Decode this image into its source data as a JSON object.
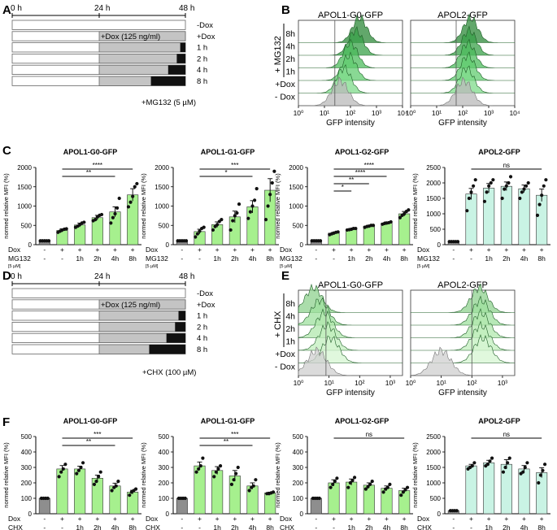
{
  "figure": {
    "panel_letters": [
      "A",
      "B",
      "C",
      "D",
      "E",
      "F"
    ],
    "colors": {
      "bar_green": "#a6f08e",
      "bar_mint": "#c9f3e4",
      "bar_grey": "#8e8e8e",
      "timeline_grey": "#c4c4c4",
      "treat_black": "#111111",
      "hist_dark": "#2e7d32",
      "hist_grey": "#c8c8c8",
      "dot": "#111111"
    },
    "timeline_A": {
      "time_labels": [
        "0 h",
        "24 h",
        "48 h"
      ],
      "rows": [
        {
          "label": "-Dox",
          "dox": false,
          "frac": 0
        },
        {
          "label": "+Dox",
          "dox": true,
          "frac": 0
        },
        {
          "label": "1 h",
          "dox": true,
          "frac": 0.06
        },
        {
          "label": "2 h",
          "dox": true,
          "frac": 0.1
        },
        {
          "label": "4 h",
          "dox": true,
          "frac": 0.2
        },
        {
          "label": "8 h",
          "dox": true,
          "frac": 0.4
        }
      ],
      "dox_text": "+Dox (125 ng/ml)",
      "treat_text": "+MG132 (5 µM)"
    },
    "timeline_D": {
      "time_labels": [
        "0 h",
        "24 h",
        "48 h"
      ],
      "rows": [
        {
          "label": "-Dox",
          "dox": false,
          "frac": 0
        },
        {
          "label": "+Dox",
          "dox": true,
          "frac": 0
        },
        {
          "label": "1 h",
          "dox": true,
          "frac": 0.08
        },
        {
          "label": "2 h",
          "dox": true,
          "frac": 0.12
        },
        {
          "label": "4 h",
          "dox": true,
          "frac": 0.22
        },
        {
          "label": "8 h",
          "dox": true,
          "frac": 0.42
        }
      ],
      "dox_text": "+Dox (125 ng/ml)",
      "treat_text": "+CHX (100 µM)"
    },
    "hist_B": {
      "titles": [
        "APOL1-G0-GFP",
        "APOL2-GFP"
      ],
      "row_labels": [
        "8h",
        "4h",
        "2h",
        "1h",
        "+Dox",
        "- Dox"
      ],
      "treat_label": "+ MG132",
      "xlabel": "GFP intensity",
      "ticks_left": [
        "10⁰",
        "10¹",
        "10²",
        "10³",
        "10⁴"
      ],
      "ticks_right": [
        "10⁰",
        "10¹",
        "10²",
        "10³",
        "10⁴"
      ],
      "peaks_left": [
        2.35,
        2.2,
        2.0,
        1.95,
        1.75,
        1.6
      ],
      "peaks_right": [
        2.3,
        2.25,
        2.2,
        2.2,
        2.15,
        2.05
      ],
      "line_left": 1.4,
      "line_right": 1.75
    },
    "hist_E": {
      "titles": [
        "APOL1-G0-GFP",
        "APOL2-GFP"
      ],
      "row_labels": [
        "8h",
        "4h",
        "2h",
        "1h",
        "+Dox",
        "- Dox"
      ],
      "treat_label": "+ CHX",
      "xlabel": "GFP intensity",
      "ticks_left": [
        "10⁰",
        "10¹",
        "10²",
        "10³"
      ],
      "ticks_right": [
        "10⁰",
        "10¹",
        "10²",
        "10³"
      ],
      "peaks_left": [
        0.5,
        0.7,
        0.85,
        0.95,
        1.05,
        0.6
      ],
      "peaks_right": [
        2.25,
        2.3,
        2.3,
        2.3,
        2.35,
        1.0
      ],
      "line_left": 0.9,
      "line_right": 2.0
    },
    "chart_data": [
      {
        "id": "C1",
        "type": "bar",
        "title": "APOL1-G0-GFP",
        "ylabel": "normed relative MFI (%)",
        "categories": [
          "-",
          "-",
          "1h",
          "2h",
          "4h",
          "8h"
        ],
        "values": [
          100,
          370,
          510,
          700,
          850,
          1290
        ],
        "errors": [
          5,
          40,
          50,
          60,
          130,
          160
        ],
        "ylim": [
          0,
          2000
        ],
        "yticks": [
          0,
          500,
          1000,
          1500,
          2000
        ],
        "dots": [
          [
            100,
            100,
            100,
            100,
            100
          ],
          [
            320,
            350,
            380,
            400,
            410
          ],
          [
            450,
            480,
            520,
            560,
            580
          ],
          [
            620,
            650,
            720,
            760,
            780
          ],
          [
            560,
            700,
            800,
            950,
            1200
          ],
          [
            980,
            1100,
            1250,
            1500,
            1580
          ]
        ],
        "sig": [
          {
            "from": 1,
            "to": 5,
            "label": "****"
          },
          {
            "from": 1,
            "to": 4,
            "label": "**"
          }
        ],
        "row_labels": [
          "Dox",
          "MG132"
        ],
        "row_note": "[5 µM]",
        "dox_row": [
          "-",
          "+",
          "+",
          "+",
          "+",
          "+"
        ],
        "treat_row": [
          "-",
          "-",
          "1h",
          "2h",
          "4h",
          "8h"
        ]
      },
      {
        "id": "C2",
        "type": "bar",
        "title": "APOL1-G1-GFP",
        "ylabel": "normed relative MFI (%)",
        "categories": [
          "-",
          "-",
          "1h",
          "2h",
          "4h",
          "8h"
        ],
        "values": [
          100,
          340,
          520,
          720,
          980,
          1410
        ],
        "errors": [
          5,
          60,
          70,
          150,
          160,
          300
        ],
        "ylim": [
          0,
          2000
        ],
        "yticks": [
          0,
          500,
          1000,
          1500,
          2000
        ],
        "dots": [
          [
            100,
            100,
            100,
            100,
            100
          ],
          [
            200,
            280,
            350,
            420,
            450
          ],
          [
            380,
            470,
            520,
            600,
            650
          ],
          [
            380,
            620,
            750,
            820,
            1050
          ],
          [
            680,
            850,
            1000,
            1150,
            1450
          ],
          [
            650,
            1000,
            1300,
            1600,
            1900
          ]
        ],
        "sig": [
          {
            "from": 1,
            "to": 5,
            "label": "***"
          },
          {
            "from": 1,
            "to": 4,
            "label": "*"
          }
        ],
        "row_labels": [
          "Dox",
          "MG132"
        ],
        "row_note": "[5 µM]",
        "dox_row": [
          "-",
          "+",
          "+",
          "+",
          "+",
          "+"
        ],
        "treat_row": [
          "-",
          "-",
          "1h",
          "2h",
          "4h",
          "8h"
        ]
      },
      {
        "id": "C3",
        "type": "bar",
        "title": "APOL1-G2-GFP",
        "ylabel": "normed relative MFI (%)",
        "categories": [
          "-",
          "-",
          "1h",
          "2h",
          "4h",
          "8h"
        ],
        "values": [
          100,
          300,
          400,
          480,
          560,
          800
        ],
        "errors": [
          5,
          20,
          20,
          25,
          30,
          60
        ],
        "ylim": [
          0,
          2000
        ],
        "yticks": [
          0,
          500,
          1000,
          1500,
          2000
        ],
        "dots": [
          [
            100,
            100,
            100,
            100,
            100
          ],
          [
            260,
            280,
            300,
            320,
            330
          ],
          [
            380,
            390,
            400,
            420,
            420
          ],
          [
            450,
            470,
            480,
            500,
            500
          ],
          [
            530,
            550,
            560,
            570,
            590
          ],
          [
            700,
            760,
            800,
            860,
            900
          ]
        ],
        "sig": [
          {
            "from": 1,
            "to": 5,
            "label": "****"
          },
          {
            "from": 1,
            "to": 4,
            "label": "****"
          },
          {
            "from": 1,
            "to": 3,
            "label": "**"
          },
          {
            "from": 1,
            "to": 2,
            "label": "*"
          }
        ],
        "row_labels": [
          "Dox",
          "MG132"
        ],
        "row_note": "[5 µM]",
        "dox_row": [
          "-",
          "+",
          "+",
          "+",
          "+",
          "+"
        ],
        "treat_row": [
          "-",
          "-",
          "1h",
          "2h",
          "4h",
          "8h"
        ]
      },
      {
        "id": "C4",
        "type": "bar",
        "title": "APOL2-GFP",
        "ylabel": "normed relative MFI (%)",
        "mint": true,
        "categories": [
          "-",
          "-",
          "1h",
          "2h",
          "4h",
          "8h"
        ],
        "values": [
          100,
          1640,
          1830,
          1890,
          1810,
          1600
        ],
        "errors": [
          5,
          180,
          150,
          140,
          120,
          200
        ],
        "ylim": [
          0,
          2500
        ],
        "yticks": [
          0,
          500,
          1000,
          1500,
          2000,
          2500
        ],
        "dots": [
          [
            100,
            100,
            100,
            100,
            100
          ],
          [
            1100,
            1500,
            1700,
            1900,
            2100
          ],
          [
            1400,
            1700,
            1900,
            2000,
            2100
          ],
          [
            1500,
            1800,
            1900,
            2000,
            2200
          ],
          [
            1500,
            1700,
            1800,
            1900,
            2000
          ],
          [
            950,
            1300,
            1600,
            1900,
            2100
          ]
        ],
        "sig": [
          {
            "from": 1,
            "to": 5,
            "label": "ns"
          }
        ],
        "row_labels": [
          "Dox",
          "MG132"
        ],
        "row_note": "[5 µM]",
        "dox_row": [
          "-",
          "+",
          "+",
          "+",
          "+",
          "+"
        ],
        "treat_row": [
          "-",
          "-",
          "1h",
          "2h",
          "4h",
          "8h"
        ]
      },
      {
        "id": "F1",
        "type": "bar",
        "title": "APOL1-G0-GFP",
        "ylabel": "normed relative MFI (%)",
        "categories": [
          "-",
          "-",
          "1h",
          "2h",
          "4h",
          "8h"
        ],
        "values": [
          100,
          290,
          290,
          230,
          180,
          140
        ],
        "errors": [
          3,
          22,
          18,
          20,
          18,
          12
        ],
        "ylim": [
          0,
          500
        ],
        "yticks": [
          0,
          100,
          200,
          300,
          400,
          500
        ],
        "dots": [
          [
            100,
            100,
            100,
            100
          ],
          [
            240,
            270,
            290,
            320
          ],
          [
            260,
            280,
            300,
            330
          ],
          [
            190,
            210,
            240,
            270
          ],
          [
            150,
            170,
            180,
            210
          ],
          [
            120,
            140,
            150,
            160
          ]
        ],
        "sig": [
          {
            "from": 1,
            "to": 5,
            "label": "***"
          },
          {
            "from": 1,
            "to": 4,
            "label": "**"
          }
        ],
        "row_labels": [
          "Dox",
          "CHX"
        ],
        "row_note": "[100 µM]",
        "dox_row": [
          "-",
          "+",
          "+",
          "+",
          "+",
          "+"
        ],
        "treat_row": [
          "-",
          "-",
          "1h",
          "2h",
          "4h",
          "8h"
        ]
      },
      {
        "id": "F2",
        "type": "bar",
        "title": "APOL1-G1-GFP",
        "ylabel": "normed relative MFI (%)",
        "categories": [
          "-",
          "-",
          "1h",
          "2h",
          "4h",
          "8h"
        ],
        "values": [
          100,
          310,
          280,
          245,
          180,
          135
        ],
        "errors": [
          3,
          25,
          25,
          35,
          20,
          5
        ],
        "ylim": [
          0,
          500
        ],
        "yticks": [
          0,
          100,
          200,
          300,
          400,
          500
        ],
        "dots": [
          [
            100,
            100,
            100,
            100
          ],
          [
            270,
            290,
            310,
            360
          ],
          [
            240,
            270,
            290,
            310
          ],
          [
            190,
            220,
            260,
            300
          ],
          [
            150,
            170,
            180,
            220
          ],
          [
            130,
            130,
            135,
            140
          ]
        ],
        "sig": [
          {
            "from": 1,
            "to": 5,
            "label": "***"
          },
          {
            "from": 1,
            "to": 4,
            "label": "**"
          }
        ],
        "row_labels": [
          "Dox",
          "CHX"
        ],
        "row_note": "[100 µM]",
        "dox_row": [
          "-",
          "+",
          "+",
          "+",
          "+",
          "+"
        ],
        "treat_row": [
          "-",
          "-",
          "1h",
          "2h",
          "4h",
          "8h"
        ]
      },
      {
        "id": "F3",
        "type": "bar",
        "title": "APOL1-G2-GFP",
        "ylabel": "normed relative MFI (%)",
        "categories": [
          "-",
          "-",
          "1h",
          "2h",
          "4h",
          "8h"
        ],
        "values": [
          100,
          200,
          205,
          185,
          165,
          150
        ],
        "errors": [
          3,
          20,
          20,
          15,
          15,
          15
        ],
        "ylim": [
          0,
          500
        ],
        "yticks": [
          0,
          100,
          200,
          300,
          400,
          500
        ],
        "dots": [
          [
            100,
            100,
            100,
            100
          ],
          [
            170,
            190,
            210,
            230
          ],
          [
            170,
            200,
            215,
            235
          ],
          [
            160,
            175,
            190,
            210
          ],
          [
            140,
            160,
            170,
            190
          ],
          [
            120,
            140,
            155,
            170
          ]
        ],
        "sig": [
          {
            "from": 1,
            "to": 5,
            "label": "ns"
          }
        ],
        "row_labels": [
          "Dox",
          "CHX"
        ],
        "row_note": "[100 µM]",
        "dox_row": [
          "-",
          "+",
          "+",
          "+",
          "+",
          "+"
        ],
        "treat_row": [
          "-",
          "-",
          "1h",
          "2h",
          "4h",
          "8h"
        ]
      },
      {
        "id": "F4",
        "type": "bar",
        "title": "APOL2-GFP",
        "ylabel": "normed relative MFI (%)",
        "mint": true,
        "categories": [
          "-",
          "-",
          "1h",
          "2h",
          "4h",
          "8h"
        ],
        "values": [
          100,
          1550,
          1650,
          1600,
          1450,
          1330
        ],
        "errors": [
          3,
          50,
          80,
          150,
          110,
          160
        ],
        "ylim": [
          0,
          2500
        ],
        "yticks": [
          0,
          500,
          1000,
          1500,
          2000,
          2500
        ],
        "dots": [
          [
            100,
            100,
            100,
            100
          ],
          [
            1450,
            1500,
            1550,
            1650
          ],
          [
            1550,
            1600,
            1700,
            1800
          ],
          [
            1350,
            1500,
            1650,
            1800
          ],
          [
            1300,
            1350,
            1500,
            1650
          ],
          [
            1000,
            1250,
            1400,
            1600
          ]
        ],
        "sig": [
          {
            "from": 1,
            "to": 5,
            "label": "ns"
          }
        ],
        "row_labels": [
          "Dox",
          "CHX"
        ],
        "row_note": "[100 µM]",
        "dox_row": [
          "-",
          "+",
          "+",
          "+",
          "+",
          "+"
        ],
        "treat_row": [
          "-",
          "-",
          "1h",
          "2h",
          "4h",
          "8h"
        ]
      }
    ]
  }
}
